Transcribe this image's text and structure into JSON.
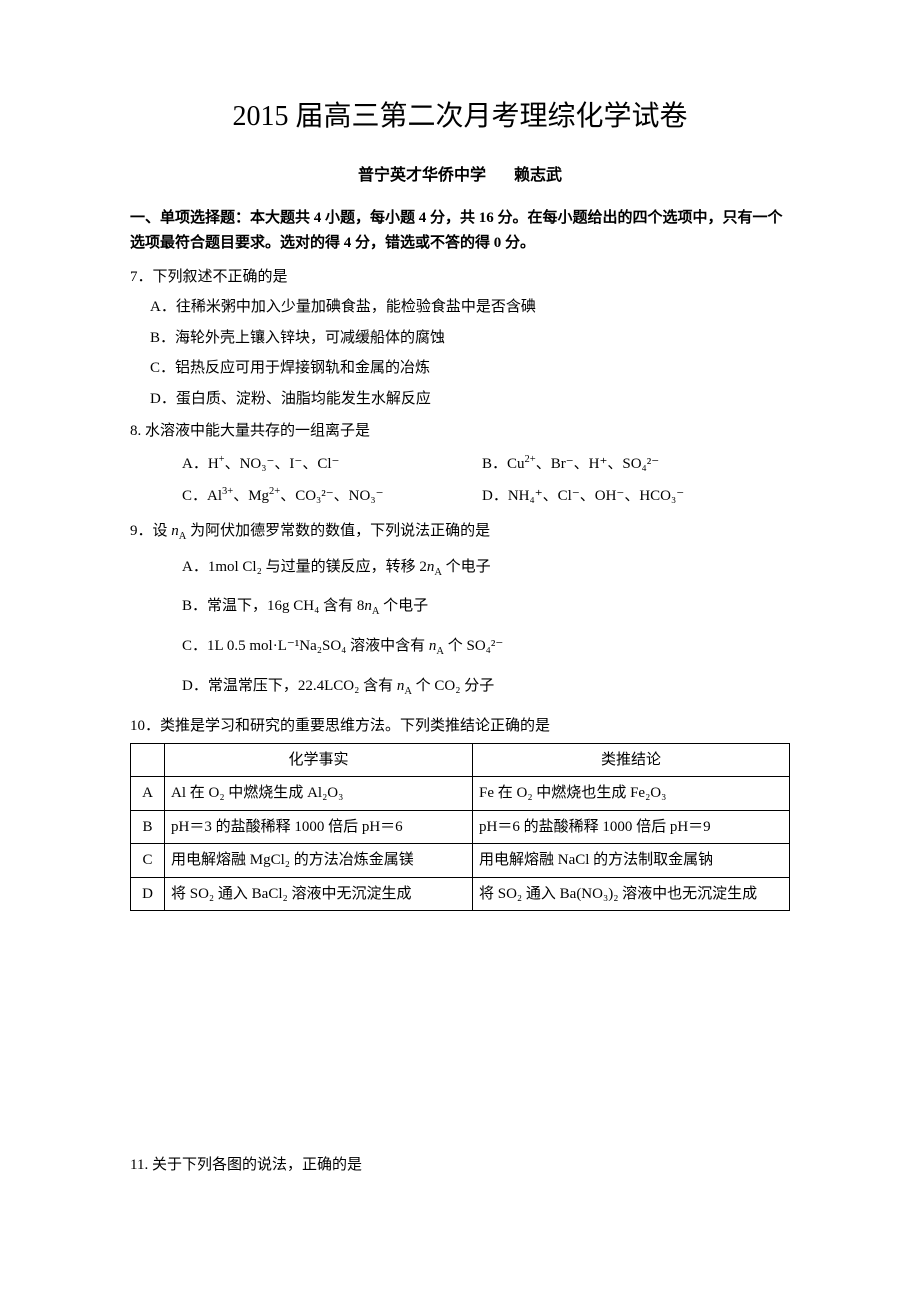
{
  "title": "2015 届高三第二次月考理综化学试卷",
  "school": "普宁英才华侨中学",
  "author": "赖志武",
  "instructions": "一、单项选择题：本大题共 4 小题，每小题 4 分，共 16 分。在每小题给出的四个选项中，只有一个选项最符合题目要求。选对的得 4 分，错选或不答的得 0 分。",
  "q7": {
    "stem": "7．下列叙述不正确的是",
    "A": "A．往稀米粥中加入少量加碘食盐，能检验食盐中是否含碘",
    "B": "B．海轮外壳上镶入锌块，可减缓船体的腐蚀",
    "C": "C．铝热反应可用于焊接钢轨和金属的冶炼",
    "D": "D．蛋白质、淀粉、油脂均能发生水解反应"
  },
  "q8": {
    "stem": "8. 水溶液中能大量共存的一组离子是",
    "A_prefix": "A．H",
    "A_rest": "、NO₃⁻、I⁻、Cl⁻",
    "B_prefix": "B．Cu",
    "B_rest": "、Br⁻、H⁺、SO₄²⁻",
    "C_prefix": "C．Al",
    "C_mid": "、Mg",
    "C_rest": "、CO₃²⁻、NO₃⁻",
    "D_prefix": "D．NH₄⁺、Cl⁻、OH⁻、HCO₃⁻"
  },
  "q9": {
    "stem_prefix": "9．设 ",
    "stem_na": "n",
    "stem_suffix": " 为阿伏加德罗常数的数值，下列说法正确的是",
    "A": "A．1mol Cl₂ 与过量的镁反应，转移 2",
    "A_suffix": " 个电子",
    "B": "B．常温下，16g CH₄ 含有 8",
    "B_suffix": " 个电子",
    "C": "C．1L 0.5 mol·L⁻¹Na₂SO₄ 溶液中含有 ",
    "C_suffix": " 个 SO₄²⁻",
    "D": "D．常温常压下，22.4LCO₂ 含有 ",
    "D_suffix": " 个 CO₂ 分子"
  },
  "q10": {
    "stem": "10．类推是学习和研究的重要思维方法。下列类推结论正确的是",
    "headers": {
      "fact": "化学事实",
      "conclusion": "类推结论"
    },
    "rows": [
      {
        "label": "A",
        "fact": "Al 在 O₂ 中燃烧生成 Al₂O₃",
        "conclusion": "Fe 在 O₂ 中燃烧也生成 Fe₂O₃"
      },
      {
        "label": "B",
        "fact": "pH＝3 的盐酸稀释 1000 倍后 pH＝6",
        "conclusion": "pH＝6 的盐酸稀释 1000 倍后 pH＝9"
      },
      {
        "label": "C",
        "fact": "用电解熔融 MgCl₂ 的方法冶炼金属镁",
        "conclusion": "用电解熔融 NaCl 的方法制取金属钠"
      },
      {
        "label": "D",
        "fact": "将 SO₂ 通入 BaCl₂ 溶液中无沉淀生成",
        "conclusion": "将 SO₂ 通入 Ba(NO₃)₂ 溶液中也无沉淀生成"
      }
    ]
  },
  "q11": {
    "stem": "11. 关于下列各图的说法，正确的是"
  },
  "typography": {
    "title_fontsize": 28,
    "body_fontsize": 15,
    "subtitle_fontsize": 16,
    "font_family": "SimSun",
    "text_color": "#000000",
    "background_color": "#ffffff",
    "table_border_color": "#000000"
  }
}
